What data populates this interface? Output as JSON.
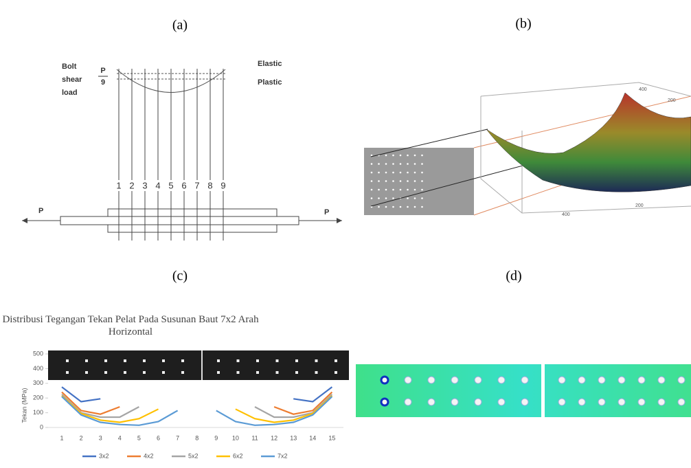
{
  "panel_labels": [
    "(a)",
    "(b)",
    "(c)",
    "(d)"
  ],
  "panel_a": {
    "load_label": [
      "Bolt",
      "shear",
      "load"
    ],
    "fraction_top": "P",
    "fraction_bottom": "9",
    "elastic": "Elastic",
    "plastic": "Plastic",
    "bolt_numbers": [
      "1",
      "2",
      "3",
      "4",
      "5",
      "6",
      "7",
      "8",
      "9"
    ],
    "left_force": "P",
    "right_force": "P"
  },
  "panel_b": {
    "axis_labels": [
      "400",
      "200",
      "200",
      "400"
    ]
  },
  "chart_data": {
    "type": "line",
    "title": "Distribusi Tegangan Tekan  Pelat Pada  Susunan Baut 7x2 Arah Horizontal",
    "y_label": "Tekan (MPa)",
    "categories": [
      "1",
      "2",
      "3",
      "4",
      "5",
      "6",
      "7",
      "8",
      "9",
      "10",
      "11",
      "12",
      "13",
      "14",
      "15"
    ],
    "ylim": [
      0,
      500
    ],
    "yticks": [
      0,
      100,
      200,
      300,
      400,
      500
    ],
    "series": [
      {
        "name": "3x2",
        "color": "#4472c4",
        "values": [
          275,
          175,
          195,
          null,
          null,
          null,
          null,
          null,
          null,
          null,
          null,
          null,
          195,
          175,
          275
        ]
      },
      {
        "name": "4x2",
        "color": "#ed7d31",
        "values": [
          240,
          115,
          90,
          140,
          null,
          null,
          null,
          null,
          null,
          null,
          null,
          140,
          90,
          115,
          240
        ]
      },
      {
        "name": "5x2",
        "color": "#a5a5a5",
        "values": [
          225,
          100,
          70,
          70,
          140,
          null,
          null,
          null,
          null,
          null,
          140,
          70,
          70,
          100,
          225
        ]
      },
      {
        "name": "6x2",
        "color": "#ffc000",
        "values": [
          215,
          95,
          50,
          35,
          60,
          125,
          null,
          null,
          null,
          125,
          60,
          35,
          50,
          95,
          215
        ]
      },
      {
        "name": "7x2",
        "color": "#5b9bd5",
        "values": [
          210,
          85,
          35,
          20,
          15,
          40,
          115,
          null,
          115,
          40,
          15,
          20,
          35,
          85,
          210
        ]
      }
    ]
  }
}
